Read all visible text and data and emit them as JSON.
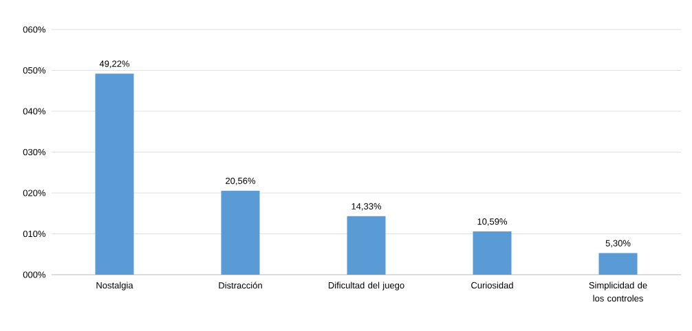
{
  "chart_data": {
    "type": "bar",
    "categories": [
      "Nostalgia",
      "Distracción",
      "Dificultad del juego",
      "Curiosidad",
      "Simplicidad de los controles"
    ],
    "values": [
      49.22,
      20.56,
      14.33,
      10.59,
      5.3
    ],
    "value_labels": [
      "49,22%",
      "20,56%",
      "14,33%",
      "10,59%",
      "5,30%"
    ],
    "color": "#5b9bd5",
    "ylim": [
      0,
      60
    ],
    "yticks": [
      {
        "value": 0,
        "label": "000%"
      },
      {
        "value": 10,
        "label": "010%"
      },
      {
        "value": 20,
        "label": "020%"
      },
      {
        "value": 30,
        "label": "030%"
      },
      {
        "value": 40,
        "label": "040%"
      },
      {
        "value": 50,
        "label": "050%"
      },
      {
        "value": 60,
        "label": "060%"
      }
    ],
    "grid": "y"
  }
}
